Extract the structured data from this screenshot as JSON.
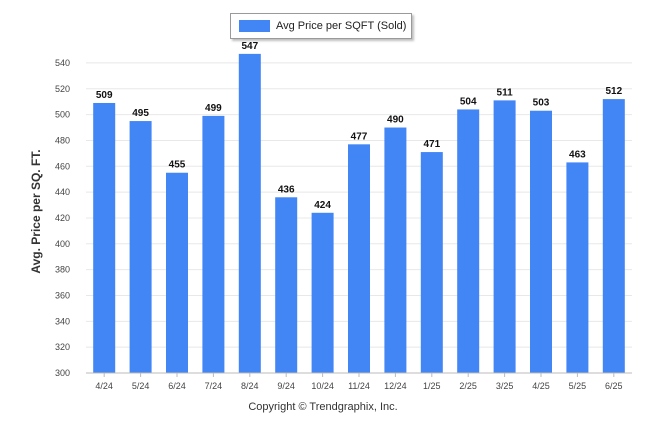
{
  "legend": {
    "label": "Avg Price per SQFT (Sold)",
    "swatch_color": "#4285f4"
  },
  "footer": {
    "copyright": "Copyright © Trendgraphix, Inc."
  },
  "chart_data": {
    "type": "bar",
    "title": "",
    "xlabel": "",
    "ylabel": "Avg. Price per SQ. FT.",
    "categories": [
      "4/24",
      "5/24",
      "6/24",
      "7/24",
      "8/24",
      "9/24",
      "10/24",
      "11/24",
      "12/24",
      "1/25",
      "2/25",
      "3/25",
      "4/25",
      "5/25",
      "6/25"
    ],
    "series": [
      {
        "name": "Avg Price per SQFT (Sold)",
        "values": [
          509,
          495,
          455,
          499,
          547,
          436,
          424,
          477,
          490,
          471,
          504,
          511,
          503,
          463,
          512
        ],
        "color": "#4285f4"
      }
    ],
    "ylim": [
      300,
      550
    ],
    "yticks": [
      300,
      320,
      340,
      360,
      380,
      400,
      420,
      440,
      460,
      480,
      500,
      520,
      540
    ],
    "grid": true,
    "data_labels": true,
    "legend_position": "top-center"
  }
}
